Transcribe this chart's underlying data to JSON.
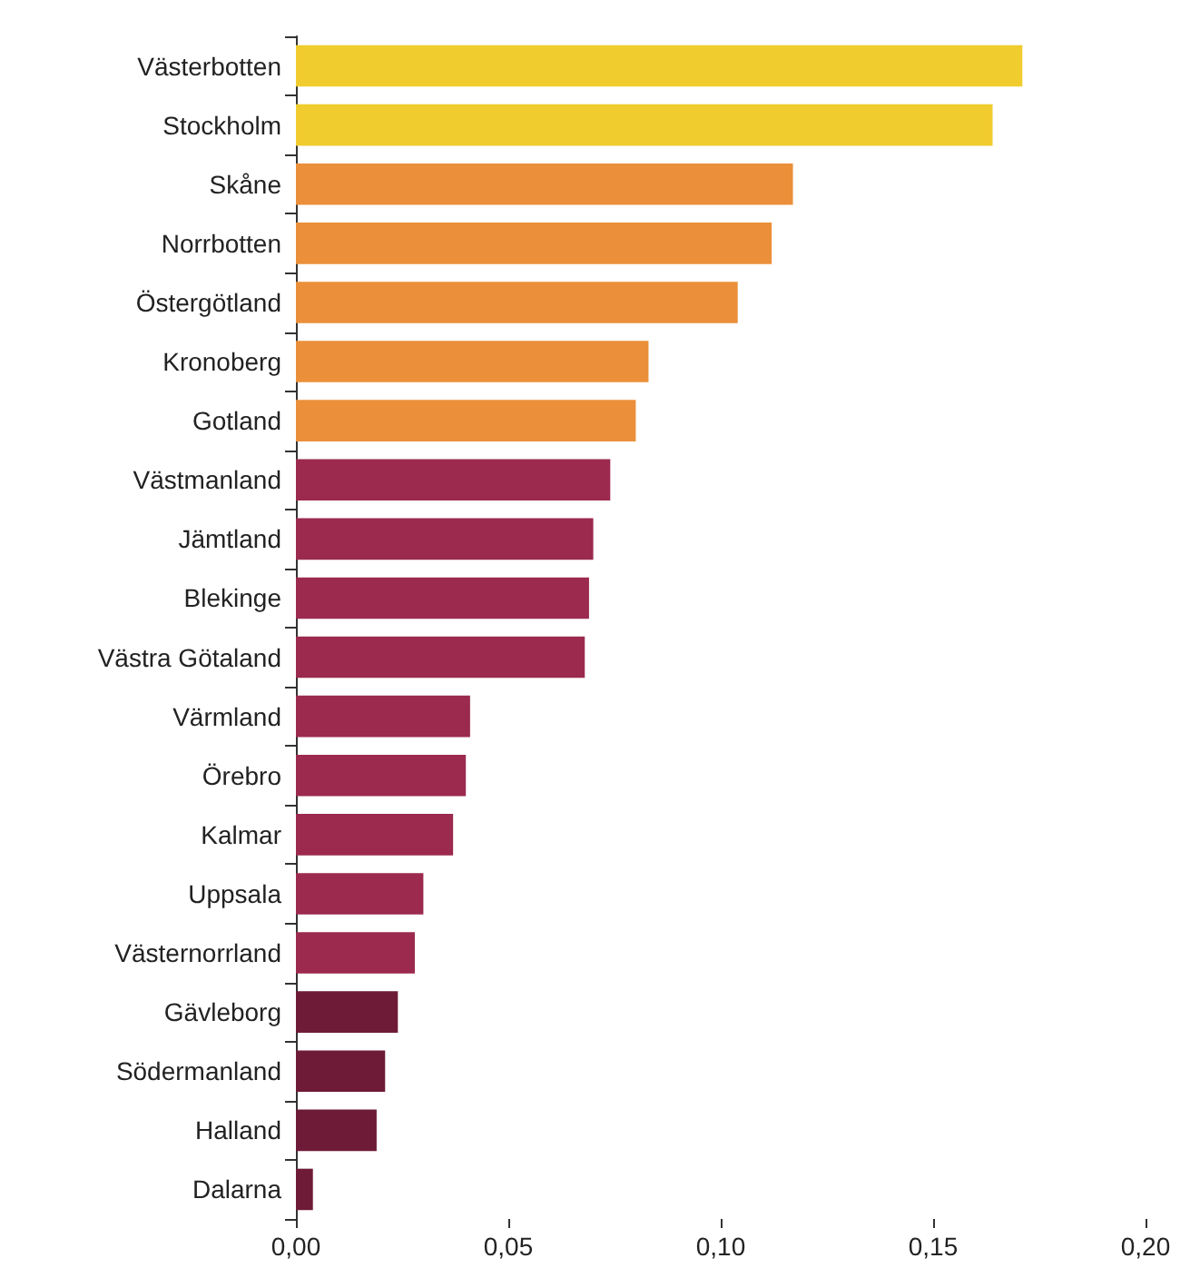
{
  "chart_data": {
    "type": "bar",
    "orientation": "horizontal",
    "categories": [
      "Västerbotten",
      "Stockholm",
      "Skåne",
      "Norrbotten",
      "Östergötland",
      "Kronoberg",
      "Gotland",
      "Västmanland",
      "Jämtland",
      "Blekinge",
      "Västra Götaland",
      "Värmland",
      "Örebro",
      "Kalmar",
      "Uppsala",
      "Västernorrland",
      "Gävleborg",
      "Södermanland",
      "Halland",
      "Dalarna"
    ],
    "values": [
      0.171,
      0.164,
      0.117,
      0.112,
      0.104,
      0.083,
      0.08,
      0.074,
      0.07,
      0.069,
      0.068,
      0.041,
      0.04,
      0.037,
      0.03,
      0.028,
      0.024,
      0.021,
      0.019,
      0.004
    ],
    "colors": [
      "#f0cc2e",
      "#f0cc2e",
      "#eb8f3a",
      "#eb8f3a",
      "#eb8f3a",
      "#eb8f3a",
      "#eb8f3a",
      "#9b2a4e",
      "#9b2a4e",
      "#9b2a4e",
      "#9b2a4e",
      "#9b2a4e",
      "#9b2a4e",
      "#9b2a4e",
      "#9b2a4e",
      "#9b2a4e",
      "#6e1b38",
      "#6e1b38",
      "#6e1b38",
      "#6e1b38"
    ],
    "xlim": [
      0,
      0.2
    ],
    "xticks": [
      {
        "value": 0,
        "label": "0,00"
      },
      {
        "value": 0.05,
        "label": "0,05"
      },
      {
        "value": 0.1,
        "label": "0,10"
      },
      {
        "value": 0.15,
        "label": "0,15"
      },
      {
        "value": 0.2,
        "label": "0,20"
      }
    ],
    "grid": false
  }
}
